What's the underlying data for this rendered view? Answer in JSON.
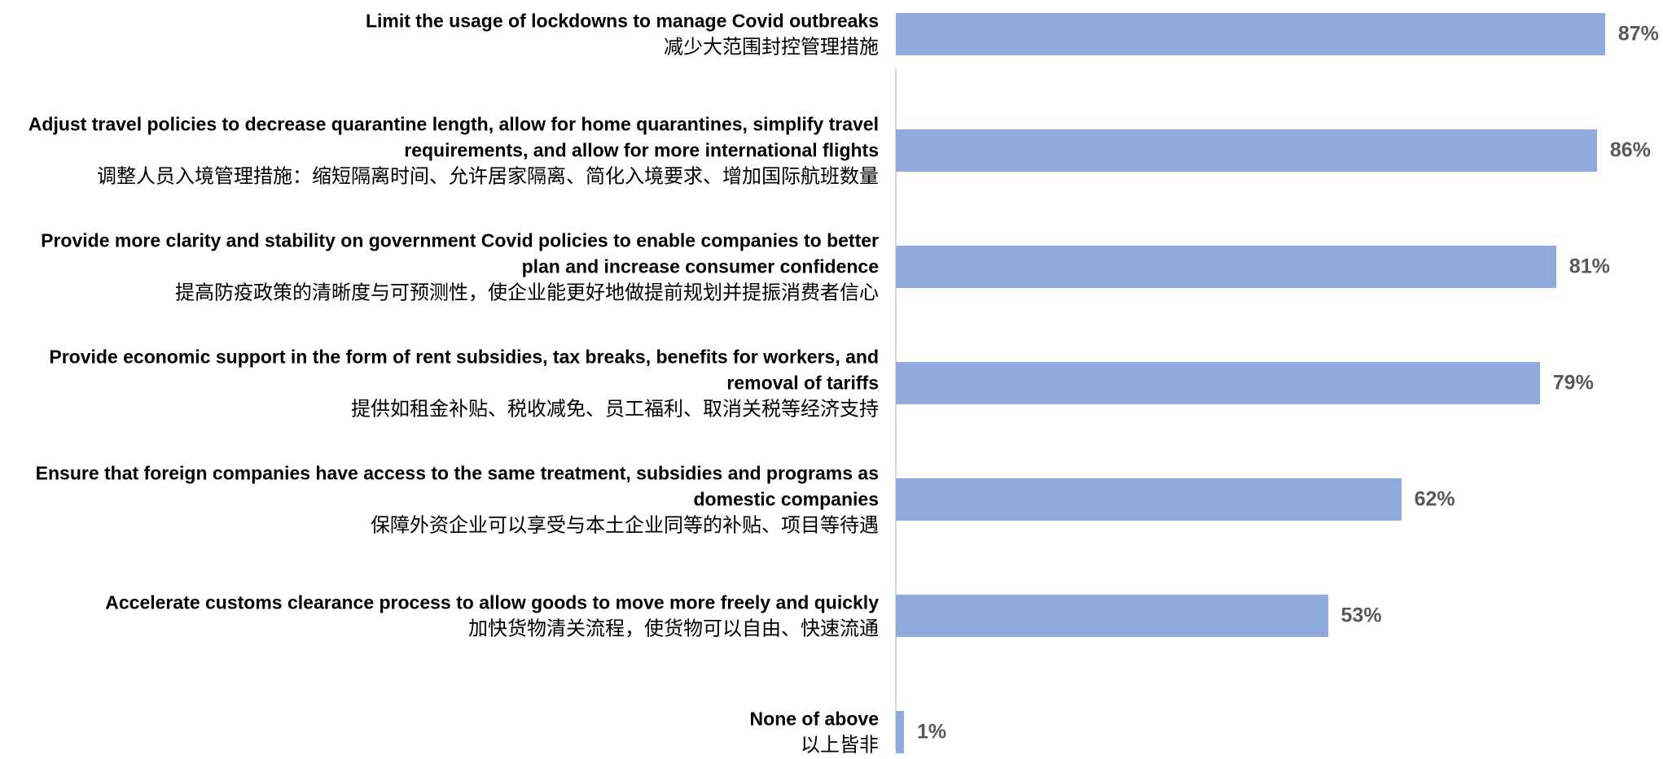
{
  "chart_data": {
    "type": "bar",
    "orientation": "horizontal",
    "categories": [
      {
        "en": "Limit the usage of lockdowns to manage Covid outbreaks",
        "zh": "减少大范围封控管理措施"
      },
      {
        "en": "Adjust travel policies to decrease quarantine length, allow for home quarantines, simplify travel requirements, and allow for more international flights",
        "zh": "调整人员入境管理措施：缩短隔离时间、允许居家隔离、简化入境要求、增加国际航班数量"
      },
      {
        "en": "Provide more clarity and stability on government Covid policies to enable companies to better plan and increase consumer confidence",
        "zh": "提高防疫政策的清晰度与可预测性，使企业能更好地做提前规划并提振消费者信心"
      },
      {
        "en": "Provide economic support in the form of rent subsidies, tax breaks, benefits for workers, and removal of tariffs",
        "zh": "提供如租金补贴、税收减免、员工福利、取消关税等经济支持"
      },
      {
        "en": "Ensure that foreign companies have access to the same treatment, subsidies and programs as domestic companies",
        "zh": "保障外资企业可以享受与本土企业同等的补贴、项目等待遇"
      },
      {
        "en": "Accelerate customs clearance process to allow goods to move more freely and quickly",
        "zh": "加快货物清关流程，使货物可以自由、快速流通"
      },
      {
        "en": "None of above",
        "zh": "以上皆非"
      }
    ],
    "values": [
      87,
      86,
      81,
      79,
      62,
      53,
      1
    ],
    "value_labels": [
      "87%",
      "86%",
      "81%",
      "79%",
      "62%",
      "53%",
      "1%"
    ],
    "color": "#8faadc"
  }
}
